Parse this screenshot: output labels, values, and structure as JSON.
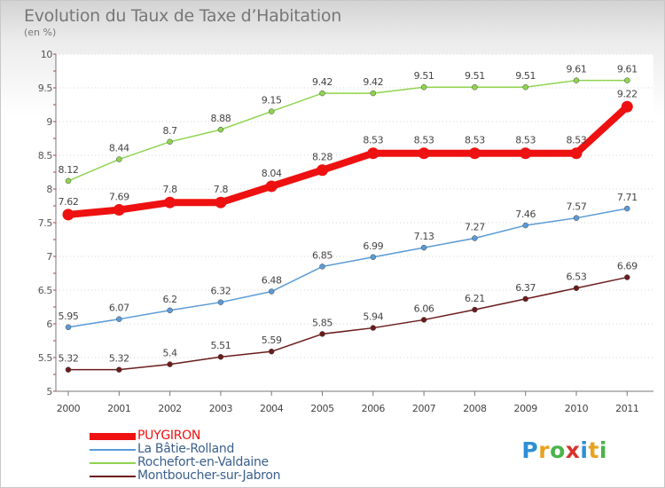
{
  "chart_data": {
    "type": "line",
    "title": "Evolution du Taux de Taxe d’Habitation",
    "subtitle": "(en %)",
    "x": [
      "2000",
      "2001",
      "2002",
      "2003",
      "2004",
      "2005",
      "2006",
      "2007",
      "2008",
      "2009",
      "2010",
      "2011"
    ],
    "ylim": [
      5,
      10
    ],
    "yticks": [
      "5",
      "5.5",
      "6",
      "6.5",
      "7",
      "7.5",
      "8",
      "8.5",
      "9",
      "9.5",
      "10"
    ],
    "grid": "horizontal dotted",
    "legend_position": "bottom-left",
    "series": [
      {
        "name": "PUYGIRON",
        "color": "#ee1111",
        "values": [
          7.62,
          7.69,
          7.8,
          7.8,
          8.04,
          8.28,
          8.53,
          8.53,
          8.53,
          8.53,
          8.53,
          9.22
        ],
        "labels": [
          "7.62",
          "7.69",
          "7.8",
          "7.8",
          "8.04",
          "8.28",
          "8.53",
          "8.53",
          "8.53",
          "8.53",
          "8.53",
          "9.22"
        ],
        "emphasis": true
      },
      {
        "name": "La Bâtie-Rolland",
        "color": "#5b9bd5",
        "values": [
          5.95,
          6.07,
          6.2,
          6.32,
          6.48,
          6.85,
          6.99,
          7.13,
          7.27,
          7.46,
          7.57,
          7.71
        ],
        "labels": [
          "5.95",
          "6.07",
          "6.2",
          "6.32",
          "6.48",
          "6.85",
          "6.99",
          "7.13",
          "7.27",
          "7.46",
          "7.57",
          "7.71"
        ]
      },
      {
        "name": "Rochefort-en-Valdaine",
        "color": "#8fd44f",
        "values": [
          8.12,
          8.44,
          8.7,
          8.88,
          9.15,
          9.42,
          9.42,
          9.51,
          9.51,
          9.51,
          9.61,
          9.61
        ],
        "labels": [
          "8.12",
          "8.44",
          "8.7",
          "8.88",
          "9.15",
          "9.42",
          "9.42",
          "9.51",
          "9.51",
          "9.51",
          "9.61",
          "9.61"
        ]
      },
      {
        "name": "Montboucher-sur-Jabron",
        "color": "#6b1b1b",
        "values": [
          5.32,
          5.32,
          5.4,
          5.51,
          5.59,
          5.85,
          5.94,
          6.06,
          6.21,
          6.37,
          6.53,
          6.69
        ],
        "labels": [
          "5.32",
          "5.32",
          "5.4",
          "5.51",
          "5.59",
          "5.85",
          "5.94",
          "6.06",
          "6.21",
          "6.37",
          "6.53",
          "6.69"
        ]
      }
    ]
  },
  "logo": {
    "letters": [
      "P",
      "r",
      "o",
      "x",
      "i",
      "t",
      "i"
    ],
    "colors": [
      "#2e8fd6",
      "#e8a21e",
      "#49b34a",
      "#d6332e",
      "#2e8fd6",
      "#e8a21e",
      "#49b34a"
    ]
  }
}
